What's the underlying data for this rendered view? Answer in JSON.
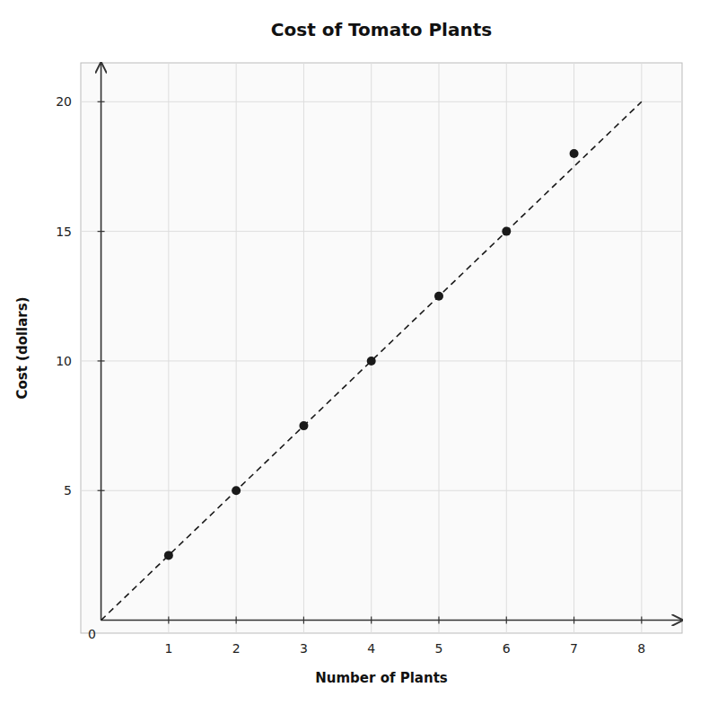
{
  "chart_data": {
    "type": "scatter",
    "title": "Cost of Tomato Plants",
    "xlabel": "Number of Plants",
    "ylabel": "Cost (dollars)",
    "series": [
      {
        "type": "line",
        "line_style": "dashed",
        "color": "#1a1a1a",
        "x": [
          0.0,
          8.0
        ],
        "values": [
          0.0,
          20.0
        ]
      },
      {
        "type": "scatter",
        "marker": "circle",
        "color": "#1a1a1a",
        "x": [
          1,
          2,
          3,
          4,
          5,
          6,
          7
        ],
        "values": [
          2.5,
          5.0,
          7.5,
          10.0,
          12.5,
          15.0,
          18.0
        ]
      }
    ],
    "annotations": [
      {
        "text": "0",
        "x": 0,
        "y": 0
      }
    ],
    "xlim": [
      -0.3,
      8.6
    ],
    "ylim": [
      -0.5,
      21.5
    ],
    "xticks": [
      1,
      2,
      3,
      4,
      5,
      6,
      7,
      8
    ],
    "yticks": [
      5,
      10,
      15,
      20
    ],
    "grid": true
  }
}
